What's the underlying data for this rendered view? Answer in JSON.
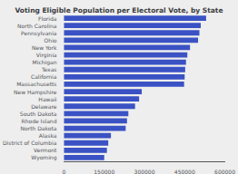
{
  "chart_data": {
    "type": "bar",
    "orientation": "horizontal",
    "title": "Voting Eligible Population per Electoral Vote, by State",
    "categories": [
      "Wyoming",
      "Vermont",
      "District of Columbia",
      "Alaska",
      "North Dakota",
      "Rhode Island",
      "South Dakota",
      "Delaware",
      "Hawaii",
      "New Hampshire",
      "Massachusetts",
      "California",
      "Texas",
      "Michigan",
      "Virginia",
      "New York",
      "Ohio",
      "Pennsylvania",
      "North Carolina",
      "Florida"
    ],
    "values": [
      150000,
      160000,
      165000,
      175000,
      230000,
      235000,
      240000,
      265000,
      280000,
      290000,
      448000,
      450000,
      452000,
      455000,
      460000,
      470000,
      500000,
      505000,
      510000,
      530000
    ],
    "color": "#3a52c4",
    "xlim": [
      0,
      600000
    ],
    "xticks": [
      0,
      150000,
      300000,
      450000,
      600000
    ],
    "grid": false
  }
}
